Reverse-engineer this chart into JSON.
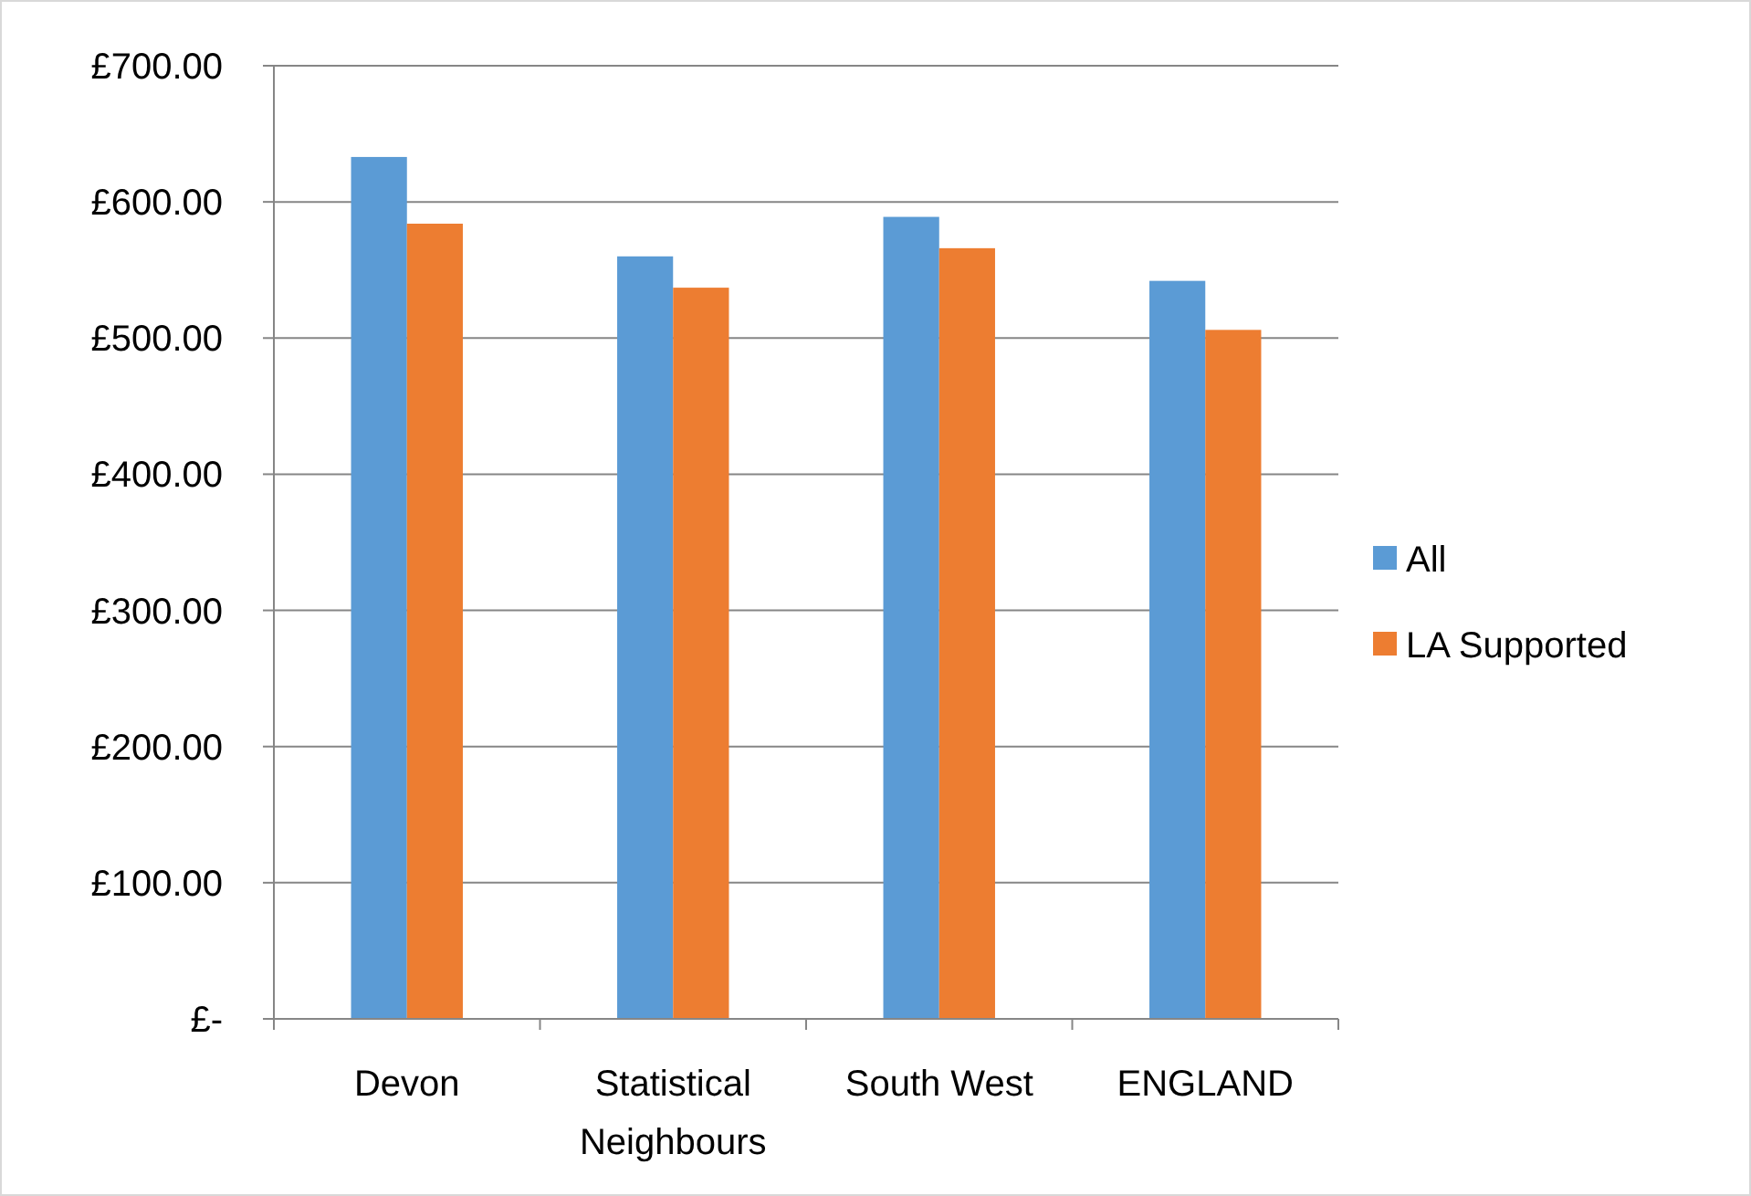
{
  "chart_data": {
    "type": "bar",
    "categories": [
      "Devon",
      "Statistical Neighbours",
      "South West",
      "ENGLAND"
    ],
    "series": [
      {
        "name": "All",
        "color": "#5b9bd5",
        "values": [
          633,
          560,
          589,
          542
        ]
      },
      {
        "name": "LA Supported",
        "color": "#ed7d31",
        "values": [
          584,
          537,
          566,
          506
        ]
      }
    ],
    "ylim": [
      0,
      700
    ],
    "yticks": [
      {
        "value": 0,
        "label": "£-"
      },
      {
        "value": 100,
        "label": "£100.00"
      },
      {
        "value": 200,
        "label": "£200.00"
      },
      {
        "value": 300,
        "label": "£300.00"
      },
      {
        "value": 400,
        "label": "£400.00"
      },
      {
        "value": 500,
        "label": "£500.00"
      },
      {
        "value": 600,
        "label": "£600.00"
      },
      {
        "value": 700,
        "label": "£700.00"
      }
    ],
    "grid": "y",
    "legend": "right"
  }
}
